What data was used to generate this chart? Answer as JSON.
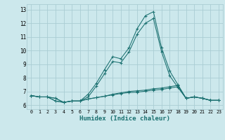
{
  "xlabel": "Humidex (Indice chaleur)",
  "xlim": [
    -0.5,
    23.5
  ],
  "ylim": [
    5.7,
    13.4
  ],
  "yticks": [
    6,
    7,
    8,
    9,
    10,
    11,
    12,
    13
  ],
  "xticks": [
    0,
    1,
    2,
    3,
    4,
    5,
    6,
    7,
    8,
    9,
    10,
    11,
    12,
    13,
    14,
    15,
    16,
    17,
    18,
    19,
    20,
    21,
    22,
    23
  ],
  "bg_color": "#cce8ec",
  "grid_color": "#aacdd4",
  "line_color": "#1a7070",
  "lines": [
    [
      6.7,
      6.6,
      6.6,
      6.5,
      6.2,
      6.3,
      6.3,
      6.8,
      7.6,
      8.6,
      9.55,
      9.4,
      10.2,
      11.6,
      12.55,
      12.85,
      10.2,
      8.5,
      7.5,
      6.5,
      6.6,
      6.5,
      6.35,
      6.35
    ],
    [
      6.7,
      6.6,
      6.6,
      6.5,
      6.2,
      6.3,
      6.3,
      6.6,
      7.4,
      8.3,
      9.2,
      9.1,
      9.9,
      11.2,
      12.0,
      12.35,
      9.9,
      8.15,
      7.3,
      6.5,
      6.6,
      6.5,
      6.35,
      6.35
    ],
    [
      6.7,
      6.6,
      6.6,
      6.3,
      6.2,
      6.3,
      6.3,
      6.45,
      6.55,
      6.65,
      6.8,
      6.9,
      7.0,
      7.05,
      7.1,
      7.2,
      7.25,
      7.35,
      7.45,
      6.5,
      6.6,
      6.5,
      6.35,
      6.35
    ],
    [
      6.7,
      6.6,
      6.6,
      6.3,
      6.2,
      6.3,
      6.3,
      6.45,
      6.55,
      6.65,
      6.75,
      6.85,
      6.92,
      6.95,
      7.02,
      7.1,
      7.15,
      7.25,
      7.35,
      6.5,
      6.6,
      6.5,
      6.35,
      6.35
    ]
  ]
}
